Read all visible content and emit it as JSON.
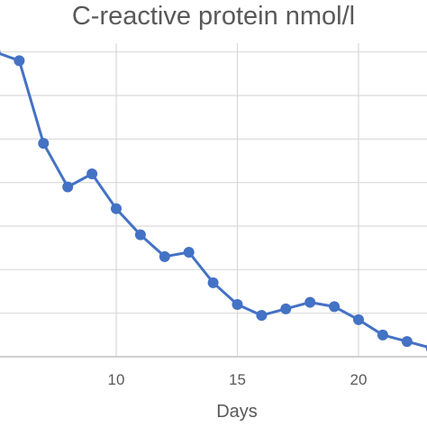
{
  "chart_data": {
    "type": "line",
    "title": "C-reactive protein nmol/l",
    "xlabel": "Days",
    "ylabel": "",
    "x_ticks": [
      10,
      15,
      20
    ],
    "xlim": [
      5,
      22.8
    ],
    "ylim": [
      0,
      7.2
    ],
    "y_grid_step": 1,
    "grid": true,
    "series": [
      {
        "color": "#4472c4",
        "points": [
          {
            "x": 5,
            "y": 7.0
          },
          {
            "x": 6,
            "y": 6.8
          },
          {
            "x": 7,
            "y": 4.9
          },
          {
            "x": 8,
            "y": 3.9
          },
          {
            "x": 9,
            "y": 4.2
          },
          {
            "x": 10,
            "y": 3.4
          },
          {
            "x": 11,
            "y": 2.8
          },
          {
            "x": 12,
            "y": 2.3
          },
          {
            "x": 13,
            "y": 2.4
          },
          {
            "x": 14,
            "y": 1.7
          },
          {
            "x": 15,
            "y": 1.2
          },
          {
            "x": 16,
            "y": 0.95
          },
          {
            "x": 17,
            "y": 1.1
          },
          {
            "x": 18,
            "y": 1.25
          },
          {
            "x": 19,
            "y": 1.15
          },
          {
            "x": 20,
            "y": 0.85
          },
          {
            "x": 21,
            "y": 0.5
          },
          {
            "x": 22,
            "y": 0.35
          },
          {
            "x": 23,
            "y": 0.2
          }
        ]
      }
    ]
  }
}
